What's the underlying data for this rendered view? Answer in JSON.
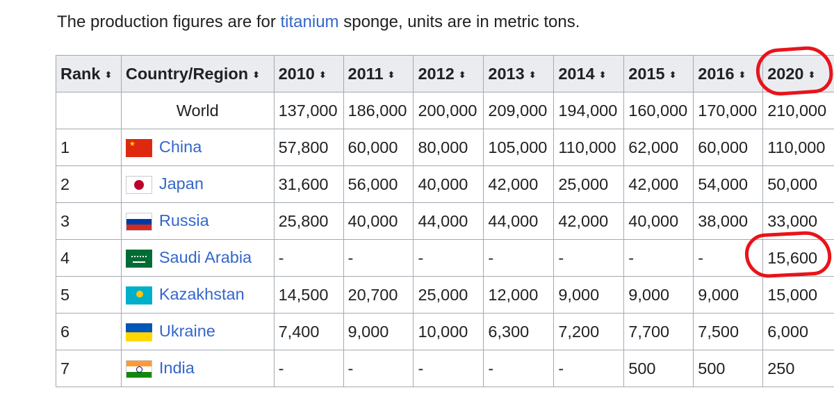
{
  "caption": {
    "before": "The production figures are for ",
    "link": "titanium",
    "after": " sponge, units are in metric tons."
  },
  "table": {
    "headers": [
      "Rank",
      "Country/Region",
      "2010",
      "2011",
      "2012",
      "2013",
      "2014",
      "2015",
      "2016",
      "2020"
    ],
    "world": {
      "label": "World",
      "values": [
        "137,000",
        "186,000",
        "200,000",
        "209,000",
        "194,000",
        "160,000",
        "170,000",
        "210,000"
      ]
    },
    "rows": [
      {
        "rank": "1",
        "country": "China",
        "flag": "china-flag-icon",
        "values": [
          "57,800",
          "60,000",
          "80,000",
          "105,000",
          "110,000",
          "62,000",
          "60,000",
          "110,000"
        ]
      },
      {
        "rank": "2",
        "country": "Japan",
        "flag": "japan-flag-icon",
        "values": [
          "31,600",
          "56,000",
          "40,000",
          "42,000",
          "25,000",
          "42,000",
          "54,000",
          "50,000"
        ]
      },
      {
        "rank": "3",
        "country": "Russia",
        "flag": "russia-flag-icon",
        "values": [
          "25,800",
          "40,000",
          "44,000",
          "44,000",
          "42,000",
          "40,000",
          "38,000",
          "33,000"
        ]
      },
      {
        "rank": "4",
        "country": "Saudi Arabia",
        "flag": "saudi-arabia-flag-icon",
        "values": [
          "-",
          "-",
          "-",
          "-",
          "-",
          "-",
          "-",
          "15,600"
        ]
      },
      {
        "rank": "5",
        "country": "Kazakhstan",
        "flag": "kazakhstan-flag-icon",
        "values": [
          "14,500",
          "20,700",
          "25,000",
          "12,000",
          "9,000",
          "9,000",
          "9,000",
          "15,000"
        ]
      },
      {
        "rank": "6",
        "country": "Ukraine",
        "flag": "ukraine-flag-icon",
        "values": [
          "7,400",
          "9,000",
          "10,000",
          "6,300",
          "7,200",
          "7,700",
          "7,500",
          "6,000"
        ]
      },
      {
        "rank": "7",
        "country": "India",
        "flag": "india-flag-icon",
        "values": [
          "-",
          "-",
          "-",
          "-",
          "-",
          "500",
          "500",
          "250"
        ]
      }
    ]
  },
  "annotations": {
    "color": "#e8141b",
    "circled": [
      "2020",
      "15,600"
    ]
  }
}
